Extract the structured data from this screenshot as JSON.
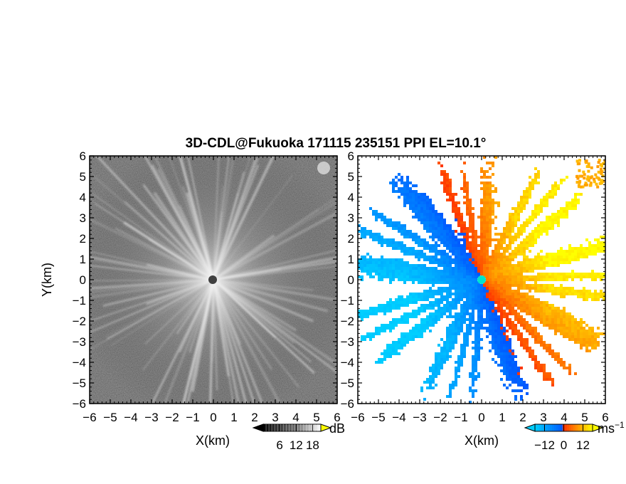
{
  "title": "3D-CDL@Fukuoka 171115 235151 PPI EL=10.1°",
  "chart_data": [
    {
      "type": "heatmap",
      "panel": "reflectivity",
      "xlabel": "X(km)",
      "ylabel": "Y(km)",
      "xlim": [
        -6,
        6
      ],
      "ylim": [
        -6,
        6
      ],
      "xticks": [
        "−6",
        "−5",
        "−4",
        "−3",
        "−2",
        "−1",
        "0",
        "1",
        "2",
        "3",
        "4",
        "5",
        "6"
      ],
      "yticks": [
        "6",
        "5",
        "4",
        "3",
        "2",
        "1",
        "0",
        "−1",
        "−2",
        "−3",
        "−4",
        "−5",
        "−6"
      ],
      "colorbar": {
        "unit": "dB",
        "ticks": [
          "6",
          "12",
          "18"
        ],
        "range": [
          0,
          21
        ],
        "colormap": "grayscale"
      },
      "radar_center": [
        0,
        0
      ],
      "radial_streaks": true,
      "grid": false
    },
    {
      "type": "heatmap",
      "panel": "doppler_velocity",
      "xlabel": "X(km)",
      "ylabel": "",
      "xlim": [
        -6,
        6
      ],
      "ylim": [
        -6,
        6
      ],
      "xticks": [
        "−6",
        "−5",
        "−4",
        "−3",
        "−2",
        "−1",
        "0",
        "1",
        "2",
        "3",
        "4",
        "5",
        "6"
      ],
      "yticks": [
        "6",
        "5",
        "4",
        "3",
        "2",
        "1",
        "0",
        "−1",
        "−2",
        "−3",
        "−4",
        "−5",
        "−6"
      ],
      "colorbar": {
        "unit": "ms",
        "unit_superscript": "−1",
        "ticks": [
          "−12",
          "0",
          "12"
        ],
        "range": [
          -18,
          18
        ],
        "colormap": [
          "#00cfff",
          "#0055ff",
          "#ff3300",
          "#ff9900",
          "#ffff00"
        ]
      },
      "radar_center": [
        0,
        0
      ],
      "flow_direction_deg": 65,
      "grid": false
    }
  ]
}
